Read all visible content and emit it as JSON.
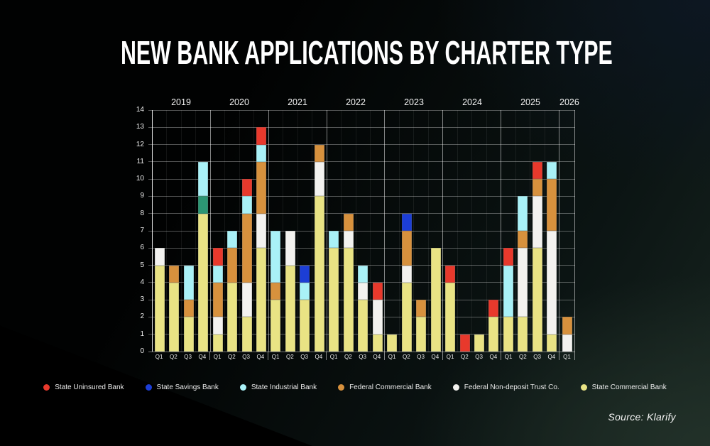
{
  "title": "NEW BANK APPLICATIONS BY CHARTER TYPE",
  "source": "Source: Klarify",
  "background": {
    "base": "#010202",
    "navy_corner": "#0d1722",
    "teal_corner": "#223129",
    "fold": "#000000"
  },
  "legend": [
    "uninsured",
    "savings",
    "industrial",
    "fedcom",
    "trust",
    "statecom"
  ],
  "chart_data": {
    "type": "bar",
    "stacked": true,
    "xlabel": "",
    "ylabel": "",
    "ylim": [
      0,
      14
    ],
    "yticks": [
      0,
      1,
      2,
      3,
      4,
      5,
      6,
      7,
      8,
      9,
      10,
      11,
      12,
      13,
      14
    ],
    "grid": true,
    "legend_position": "bottom",
    "categories": {
      "uninsured": {
        "label": "State Uninsured Bank",
        "color": "#e8392c"
      },
      "savings": {
        "label": "State Savings Bank",
        "color": "#1c3ed6"
      },
      "industrial": {
        "label": "State Industrial Bank",
        "color": "#a9f1f7"
      },
      "fedcom": {
        "label": "Federal Commercial Bank",
        "color": "#d7913d"
      },
      "trust": {
        "label": "Federal Non-deposit Trust Co.",
        "color": "#f3f2ef"
      },
      "statecom": {
        "label": "State Commercial Bank",
        "color": "#e9e384"
      },
      "green": {
        "label": "",
        "color": "#2c9673"
      }
    },
    "years": [
      {
        "year": "2019",
        "bars": [
          {
            "q": "Q1",
            "segments": [
              [
                "statecom",
                5
              ],
              [
                "trust",
                1
              ]
            ]
          },
          {
            "q": "Q2",
            "segments": [
              [
                "statecom",
                4
              ],
              [
                "fedcom",
                1
              ]
            ]
          },
          {
            "q": "Q3",
            "segments": [
              [
                "statecom",
                2
              ],
              [
                "fedcom",
                1
              ],
              [
                "industrial",
                2
              ]
            ]
          },
          {
            "q": "Q4",
            "segments": [
              [
                "statecom",
                8
              ],
              [
                "green",
                1
              ],
              [
                "industrial",
                2
              ]
            ]
          }
        ]
      },
      {
        "year": "2020",
        "bars": [
          {
            "q": "Q1",
            "segments": [
              [
                "statecom",
                1
              ],
              [
                "trust",
                1
              ],
              [
                "fedcom",
                2
              ],
              [
                "industrial",
                1
              ],
              [
                "uninsured",
                1
              ]
            ]
          },
          {
            "q": "Q2",
            "segments": [
              [
                "statecom",
                4
              ],
              [
                "fedcom",
                2
              ],
              [
                "industrial",
                1
              ]
            ]
          },
          {
            "q": "Q3",
            "segments": [
              [
                "statecom",
                2
              ],
              [
                "trust",
                2
              ],
              [
                "fedcom",
                4
              ],
              [
                "industrial",
                1
              ],
              [
                "uninsured",
                1
              ]
            ]
          },
          {
            "q": "Q4",
            "segments": [
              [
                "statecom",
                6
              ],
              [
                "trust",
                2
              ],
              [
                "fedcom",
                3
              ],
              [
                "industrial",
                1
              ],
              [
                "uninsured",
                1
              ]
            ]
          }
        ]
      },
      {
        "year": "2021",
        "bars": [
          {
            "q": "Q1",
            "segments": [
              [
                "statecom",
                3
              ],
              [
                "fedcom",
                1
              ],
              [
                "industrial",
                3
              ]
            ]
          },
          {
            "q": "Q2",
            "segments": [
              [
                "statecom",
                5
              ],
              [
                "trust",
                2
              ]
            ]
          },
          {
            "q": "Q3",
            "segments": [
              [
                "statecom",
                3
              ],
              [
                "industrial",
                1
              ],
              [
                "savings",
                1
              ]
            ]
          },
          {
            "q": "Q4",
            "segments": [
              [
                "statecom",
                9
              ],
              [
                "trust",
                2
              ],
              [
                "fedcom",
                1
              ]
            ]
          }
        ]
      },
      {
        "year": "2022",
        "bars": [
          {
            "q": "Q1",
            "segments": [
              [
                "statecom",
                6
              ],
              [
                "industrial",
                1
              ]
            ]
          },
          {
            "q": "Q2",
            "segments": [
              [
                "statecom",
                6
              ],
              [
                "trust",
                1
              ],
              [
                "fedcom",
                1
              ]
            ]
          },
          {
            "q": "Q3",
            "segments": [
              [
                "statecom",
                3
              ],
              [
                "trust",
                1
              ],
              [
                "industrial",
                1
              ]
            ]
          },
          {
            "q": "Q4",
            "segments": [
              [
                "statecom",
                1
              ],
              [
                "trust",
                2
              ],
              [
                "uninsured",
                1
              ]
            ]
          }
        ]
      },
      {
        "year": "2023",
        "bars": [
          {
            "q": "Q1",
            "segments": [
              [
                "statecom",
                1
              ]
            ]
          },
          {
            "q": "Q2",
            "segments": [
              [
                "statecom",
                4
              ],
              [
                "trust",
                1
              ],
              [
                "fedcom",
                2
              ],
              [
                "savings",
                1
              ]
            ]
          },
          {
            "q": "Q3",
            "segments": [
              [
                "statecom",
                2
              ],
              [
                "fedcom",
                1
              ]
            ]
          },
          {
            "q": "Q4",
            "segments": [
              [
                "statecom",
                6
              ]
            ]
          }
        ]
      },
      {
        "year": "2024",
        "bars": [
          {
            "q": "Q1",
            "segments": [
              [
                "statecom",
                4
              ],
              [
                "uninsured",
                1
              ]
            ]
          },
          {
            "q": "Q2",
            "segments": [
              [
                "uninsured",
                1
              ]
            ]
          },
          {
            "q": "Q3",
            "segments": [
              [
                "statecom",
                1
              ]
            ]
          },
          {
            "q": "Q4",
            "segments": [
              [
                "statecom",
                2
              ],
              [
                "uninsured",
                1
              ]
            ]
          }
        ]
      },
      {
        "year": "2025",
        "bars": [
          {
            "q": "Q1",
            "segments": [
              [
                "statecom",
                2
              ],
              [
                "industrial",
                3
              ],
              [
                "uninsured",
                1
              ]
            ]
          },
          {
            "q": "Q2",
            "segments": [
              [
                "statecom",
                2
              ],
              [
                "trust",
                4
              ],
              [
                "fedcom",
                1
              ],
              [
                "industrial",
                2
              ]
            ]
          },
          {
            "q": "Q3",
            "segments": [
              [
                "statecom",
                6
              ],
              [
                "trust",
                3
              ],
              [
                "fedcom",
                1
              ],
              [
                "uninsured",
                1
              ]
            ]
          },
          {
            "q": "Q4",
            "segments": [
              [
                "statecom",
                1
              ],
              [
                "trust",
                6
              ],
              [
                "fedcom",
                3
              ],
              [
                "industrial",
                1
              ]
            ]
          }
        ]
      },
      {
        "year": "2026",
        "bars": [
          {
            "q": "Q1",
            "segments": [
              [
                "trust",
                1
              ],
              [
                "fedcom",
                1
              ]
            ]
          }
        ]
      }
    ]
  }
}
